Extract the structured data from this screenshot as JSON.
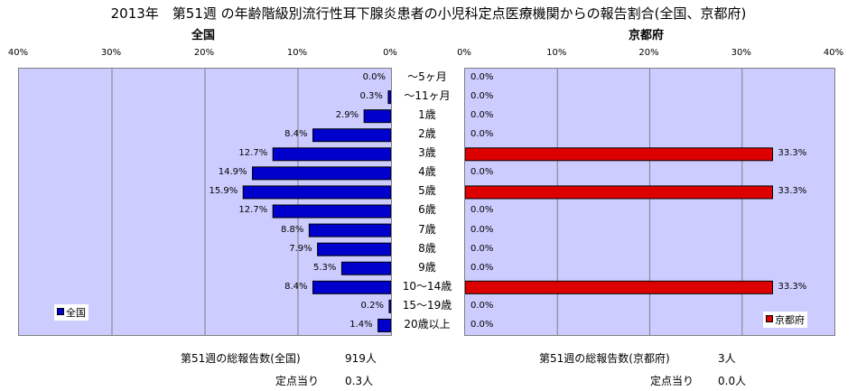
{
  "title": "2013年　第51週 の年齢階級別流行性耳下腺炎患者の小児科定点医療機関からの報告割合(全国、京都府)",
  "chart_data": [
    {
      "type": "bar",
      "orientation": "horizontal",
      "title": "全国",
      "series": [
        {
          "name": "全国",
          "color": "#0000cc",
          "values": [
            0.0,
            0.3,
            2.9,
            8.4,
            12.7,
            14.9,
            15.9,
            12.7,
            8.8,
            7.9,
            5.3,
            8.4,
            0.2,
            1.4
          ]
        }
      ],
      "value_labels": [
        "0.0%",
        "0.3%",
        "2.9%",
        "8.4%",
        "12.7%",
        "14.9%",
        "15.9%",
        "12.7%",
        "8.8%",
        "7.9%",
        "5.3%",
        "8.4%",
        "0.2%",
        "1.4%"
      ],
      "xlim": [
        0,
        40
      ],
      "x_reversed": true,
      "ticks": [
        "40%",
        "30%",
        "20%",
        "10%",
        "0%"
      ],
      "grid": true,
      "legend": "bottom-left"
    },
    {
      "type": "bar",
      "orientation": "horizontal",
      "title": "京都府",
      "series": [
        {
          "name": "京都府",
          "color": "#dd0000",
          "values": [
            0.0,
            0.0,
            0.0,
            0.0,
            33.3,
            0.0,
            33.3,
            0.0,
            0.0,
            0.0,
            0.0,
            33.3,
            0.0,
            0.0
          ]
        }
      ],
      "value_labels": [
        "0.0%",
        "0.0%",
        "0.0%",
        "0.0%",
        "33.3%",
        "0.0%",
        "33.3%",
        "0.0%",
        "0.0%",
        "0.0%",
        "0.0%",
        "33.3%",
        "0.0%",
        "0.0%"
      ],
      "xlim": [
        0,
        40
      ],
      "ticks": [
        "0%",
        "10%",
        "20%",
        "30%",
        "40%"
      ],
      "grid": true,
      "legend": "bottom-right"
    }
  ],
  "categories": [
    "～5ヶ月",
    "～11ヶ月",
    "1歳",
    "2歳",
    "3歳",
    "4歳",
    "5歳",
    "6歳",
    "7歳",
    "8歳",
    "9歳",
    "10～14歳",
    "15～19歳",
    "20歳以上"
  ],
  "colors": {
    "plot_bg": "#ccccff",
    "national": "#0000cc",
    "kyoto": "#dd0000"
  },
  "footer": {
    "national_total_label": "第51週の総報告数(全国)",
    "national_total_value": "919人",
    "national_per_label": "定点当り",
    "national_per_value": "0.3人",
    "kyoto_total_label": "第51週の総報告数(京都府)",
    "kyoto_total_value": "3人",
    "kyoto_per_label": "定点当り",
    "kyoto_per_value": "0.0人"
  }
}
